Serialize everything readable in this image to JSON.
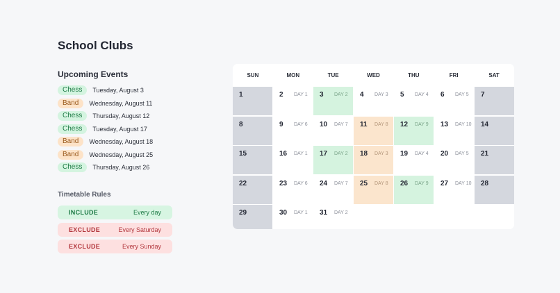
{
  "title": "School Clubs",
  "events_heading": "Upcoming Events",
  "events": [
    {
      "club": "Chess",
      "type": "chess",
      "date": "Tuesday, August 3"
    },
    {
      "club": "Band",
      "type": "band",
      "date": "Wednesday, August 11"
    },
    {
      "club": "Chess",
      "type": "chess",
      "date": "Thursday, August 12"
    },
    {
      "club": "Chess",
      "type": "chess",
      "date": "Tuesday, August 17"
    },
    {
      "club": "Band",
      "type": "band",
      "date": "Wednesday, August 18"
    },
    {
      "club": "Band",
      "type": "band",
      "date": "Wednesday, August 25"
    },
    {
      "club": "Chess",
      "type": "chess",
      "date": "Thursday, August 26"
    }
  ],
  "rules_heading": "Timetable Rules",
  "rules": [
    {
      "kind": "INCLUDE",
      "type": "include",
      "desc": "Every day"
    },
    {
      "kind": "EXCLUDE",
      "type": "exclude",
      "desc": "Every Saturday"
    },
    {
      "kind": "EXCLUDE",
      "type": "exclude",
      "desc": "Every Sunday"
    }
  ],
  "calendar": {
    "weekdays": [
      "SUN",
      "MON",
      "TUE",
      "WED",
      "THU",
      "FRI",
      "SAT"
    ],
    "days": [
      {
        "num": "1",
        "label": "",
        "style": "weekend"
      },
      {
        "num": "2",
        "label": "DAY 1",
        "style": ""
      },
      {
        "num": "3",
        "label": "DAY 2",
        "style": "chess"
      },
      {
        "num": "4",
        "label": "DAY 3",
        "style": ""
      },
      {
        "num": "5",
        "label": "DAY 4",
        "style": ""
      },
      {
        "num": "6",
        "label": "DAY 5",
        "style": ""
      },
      {
        "num": "7",
        "label": "",
        "style": "weekend"
      },
      {
        "num": "8",
        "label": "",
        "style": "weekend"
      },
      {
        "num": "9",
        "label": "DAY 6",
        "style": ""
      },
      {
        "num": "10",
        "label": "DAY 7",
        "style": ""
      },
      {
        "num": "11",
        "label": "DAY 8",
        "style": "band"
      },
      {
        "num": "12",
        "label": "DAY 9",
        "style": "chess"
      },
      {
        "num": "13",
        "label": "DAY 10",
        "style": ""
      },
      {
        "num": "14",
        "label": "",
        "style": "weekend"
      },
      {
        "num": "15",
        "label": "",
        "style": "weekend"
      },
      {
        "num": "16",
        "label": "DAY 1",
        "style": ""
      },
      {
        "num": "17",
        "label": "DAY 2",
        "style": "chess"
      },
      {
        "num": "18",
        "label": "DAY 3",
        "style": "band"
      },
      {
        "num": "19",
        "label": "DAY 4",
        "style": ""
      },
      {
        "num": "20",
        "label": "DAY 5",
        "style": ""
      },
      {
        "num": "21",
        "label": "",
        "style": "weekend"
      },
      {
        "num": "22",
        "label": "",
        "style": "weekend"
      },
      {
        "num": "23",
        "label": "DAY 6",
        "style": ""
      },
      {
        "num": "24",
        "label": "DAY 7",
        "style": ""
      },
      {
        "num": "25",
        "label": "DAY 8",
        "style": "band"
      },
      {
        "num": "26",
        "label": "DAY 9",
        "style": "chess"
      },
      {
        "num": "27",
        "label": "DAY 10",
        "style": ""
      },
      {
        "num": "28",
        "label": "",
        "style": "weekend"
      },
      {
        "num": "29",
        "label": "",
        "style": "weekend"
      },
      {
        "num": "30",
        "label": "DAY 1",
        "style": ""
      },
      {
        "num": "31",
        "label": "DAY 2",
        "style": ""
      }
    ]
  }
}
